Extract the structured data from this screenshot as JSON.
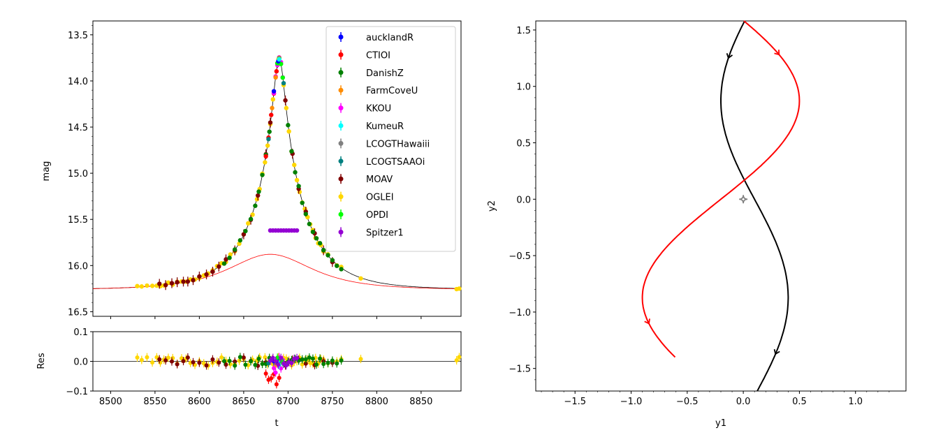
{
  "chart_data": [
    {
      "type": "scatter",
      "panel": "light-curve",
      "ylabel": "mag",
      "xlim": [
        8480,
        8895
      ],
      "ylim": [
        16.55,
        13.35
      ],
      "y_inverted": true,
      "yticks": [
        "13.5",
        "14.0",
        "14.5",
        "15.0",
        "15.5",
        "16.0",
        "16.5"
      ],
      "legend_position": "top-right",
      "series": [
        {
          "name": "aucklandR",
          "color": "#0000ff"
        },
        {
          "name": "CTIOI",
          "color": "#ff0000"
        },
        {
          "name": "DanishZ",
          "color": "#008000"
        },
        {
          "name": "FarmCoveU",
          "color": "#ff8c00"
        },
        {
          "name": "KKOU",
          "color": "#ff00ff"
        },
        {
          "name": "KumeuR",
          "color": "#00ffff"
        },
        {
          "name": "LCOGTHawaiii",
          "color": "#808080"
        },
        {
          "name": "LCOGTSAAOi",
          "color": "#008080"
        },
        {
          "name": "MOAV",
          "color": "#800000"
        },
        {
          "name": "OGLEI",
          "color": "#ffd700"
        },
        {
          "name": "OPDI",
          "color": "#00ff00"
        },
        {
          "name": "Spitzer1",
          "color": "#9400d3"
        }
      ],
      "models": [
        {
          "color": "#000000",
          "t0": 8690,
          "u0": 0.1,
          "tE": 60,
          "mag_base": 16.3
        },
        {
          "color": "#ff0000",
          "t0": 8680,
          "u0": 0.9,
          "tE": 60,
          "mag_base": 16.3
        }
      ],
      "points": [
        {
          "series": "OGLEI",
          "t": [
            8530,
            8535,
            8541,
            8547,
            8552,
            8556,
            8560,
            8565,
            8570,
            8575,
            8580,
            8585,
            8590,
            8595,
            8600,
            8605,
            8610,
            8615,
            8620,
            8625,
            8630,
            8635,
            8640,
            8645,
            8650,
            8655,
            8660,
            8665,
            8668,
            8671,
            8674,
            8677,
            8680,
            8683,
            8686,
            8689,
            8692,
            8695,
            8698,
            8701,
            8704,
            8707,
            8710,
            8713,
            8716,
            8719,
            8722,
            8725,
            8728,
            8731,
            8734,
            8737,
            8740,
            8745,
            8750,
            8755,
            8760,
            8782,
            8890,
            8893
          ]
        },
        {
          "series": "MOAV",
          "t": [
            8555,
            8562,
            8569,
            8575,
            8582,
            8587,
            8593,
            8600,
            8608,
            8615,
            8622,
            8630,
            8640,
            8650,
            8658,
            8666,
            8675,
            8680,
            8688,
            8697,
            8705,
            8712,
            8720,
            8730,
            8740,
            8750
          ]
        },
        {
          "series": "DanishZ",
          "t": [
            8628,
            8634,
            8640,
            8646,
            8652,
            8658,
            8663,
            8667,
            8671,
            8675,
            8679,
            8700,
            8704,
            8708,
            8712,
            8716,
            8720,
            8724,
            8728,
            8732,
            8736,
            8740,
            8745,
            8750,
            8755,
            8760
          ]
        },
        {
          "series": "CTIOI",
          "t": [
            8675,
            8678,
            8681,
            8684,
            8687,
            8690
          ]
        },
        {
          "series": "KKOU",
          "t": [
            8684,
            8686,
            8688,
            8690,
            8692,
            8694
          ]
        },
        {
          "series": "OPDI",
          "t": [
            8688,
            8690,
            8692,
            8694
          ]
        },
        {
          "series": "FarmCoveU",
          "t": [
            8682,
            8686,
            8690
          ]
        },
        {
          "series": "aucklandR",
          "t": [
            8684,
            8689
          ]
        },
        {
          "series": "LCOGTSAAOi",
          "t": [
            8678,
            8695
          ]
        },
        {
          "series": "KumeuR",
          "t": [
            8690
          ]
        },
        {
          "series": "Spitzer1",
          "t": [
            8680,
            8683,
            8686,
            8689,
            8692,
            8695,
            8698,
            8701,
            8704,
            8707,
            8710
          ]
        }
      ]
    },
    {
      "type": "scatter",
      "panel": "residuals",
      "xlabel": "t",
      "ylabel": "Res",
      "xlim": [
        8480,
        8895
      ],
      "ylim": [
        -0.1,
        0.1
      ],
      "xticks": [
        "8500",
        "8550",
        "8600",
        "8650",
        "8700",
        "8750",
        "8800",
        "8850"
      ],
      "yticks": [
        "−0.1",
        "0.0",
        "0.1"
      ]
    },
    {
      "type": "line",
      "panel": "trajectory",
      "xlabel": "y1",
      "ylabel": "y2",
      "xlim": [
        -1.85,
        1.45
      ],
      "ylim": [
        -1.7,
        1.58
      ],
      "xticks": [
        "−1.5",
        "−1.0",
        "−0.5",
        "0.0",
        "0.5",
        "1.0"
      ],
      "yticks": [
        "−1.5",
        "−1.0",
        "−0.5",
        "0.0",
        "0.5",
        "1.0",
        "1.5"
      ],
      "series": [
        {
          "color": "#000000",
          "y1_offset": 0.1,
          "amplitude": 0.3,
          "y2_start": 1.58,
          "y2_end": -1.7
        },
        {
          "color": "#ff0000",
          "y1_offset": -0.2,
          "amplitude": 0.7,
          "y2_start": 1.58,
          "y2_end": -1.4
        }
      ],
      "caustic": {
        "color": "#808080",
        "center": [
          0.0,
          0.0
        ],
        "size": 0.05
      }
    }
  ]
}
